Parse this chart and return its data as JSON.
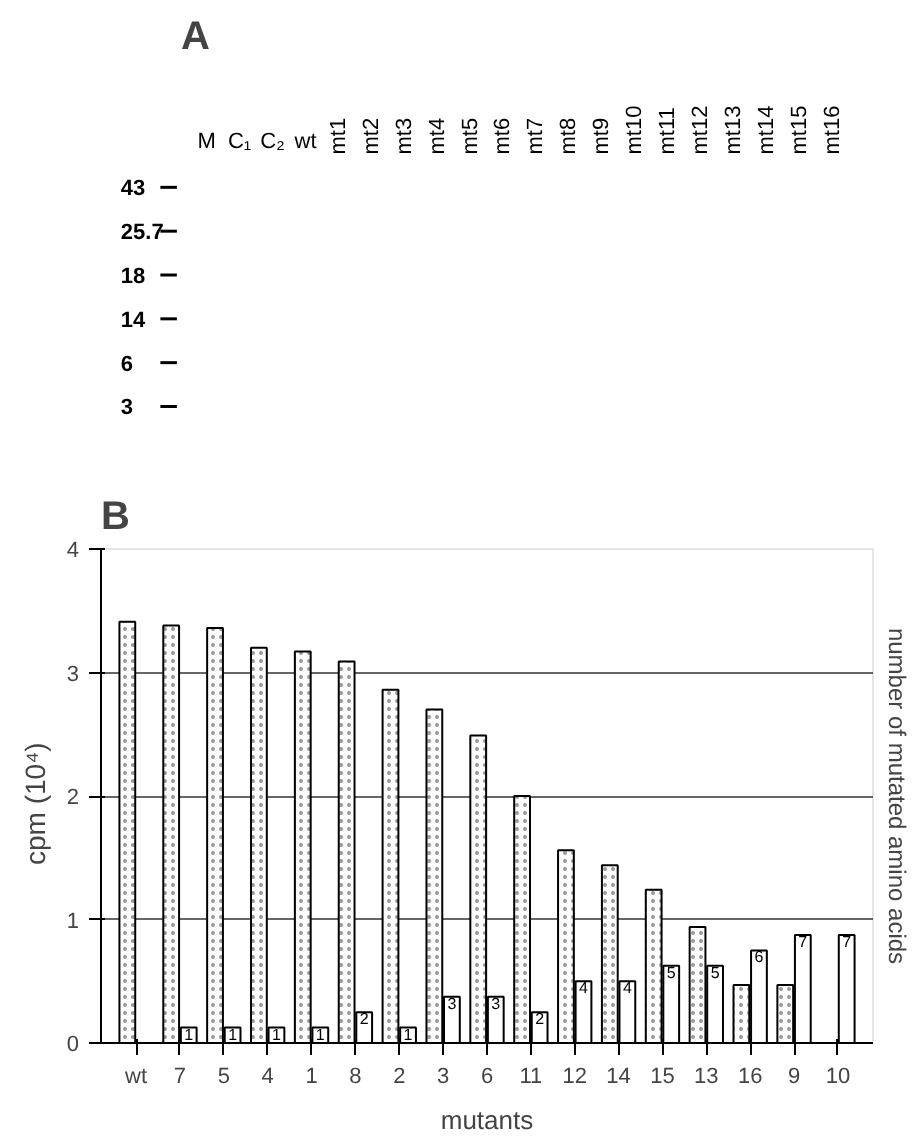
{
  "chart_data": [
    {
      "type": "other",
      "title": "A",
      "categories": [
        "M",
        "C₁",
        "C₂",
        "wt",
        "mt1",
        "mt2",
        "mt3",
        "mt4",
        "mt5",
        "mt6",
        "mt7",
        "mt8",
        "mt9",
        "mt10",
        "mt11",
        "mt12",
        "mt13",
        "mt14",
        "mt15",
        "mt16"
      ],
      "y_categories": [
        "43",
        "25.7",
        "18",
        "14",
        "6",
        "3"
      ]
    },
    {
      "type": "bar",
      "title": "B",
      "xlabel": "mutants",
      "ylabel": "cpm   (10⁴)",
      "y2label": "number of mutated amino acids",
      "categories": [
        "wt",
        "7",
        "5",
        "4",
        "1",
        "8",
        "2",
        "3",
        "6",
        "11",
        "12",
        "14",
        "15",
        "13",
        "16",
        "9",
        "10"
      ],
      "ylim": [
        0,
        4
      ],
      "yticks": [
        0,
        1,
        2,
        3,
        4
      ],
      "y2lim": [
        0,
        32
      ],
      "grid": "y",
      "series": [
        {
          "color": "#ffffff",
          "values": [
            3.41,
            3.38,
            3.36,
            3.2,
            3.17,
            3.09,
            2.86,
            2.7,
            2.49,
            2.0,
            1.56,
            1.44,
            1.24,
            0.94,
            0.47,
            0.47,
            0
          ]
        },
        {
          "color": "#ffffff",
          "axis": "y2",
          "values": [
            0,
            1,
            1,
            1,
            1,
            2,
            1,
            3,
            3,
            2,
            4,
            4,
            5,
            5,
            6,
            7,
            7
          ],
          "value_labels": [
            null,
            "1",
            "1",
            "1",
            "1",
            "2",
            "1",
            "3",
            "3",
            "2",
            "4",
            "4",
            "5",
            "5",
            "6",
            "7",
            "7"
          ]
        }
      ]
    }
  ]
}
